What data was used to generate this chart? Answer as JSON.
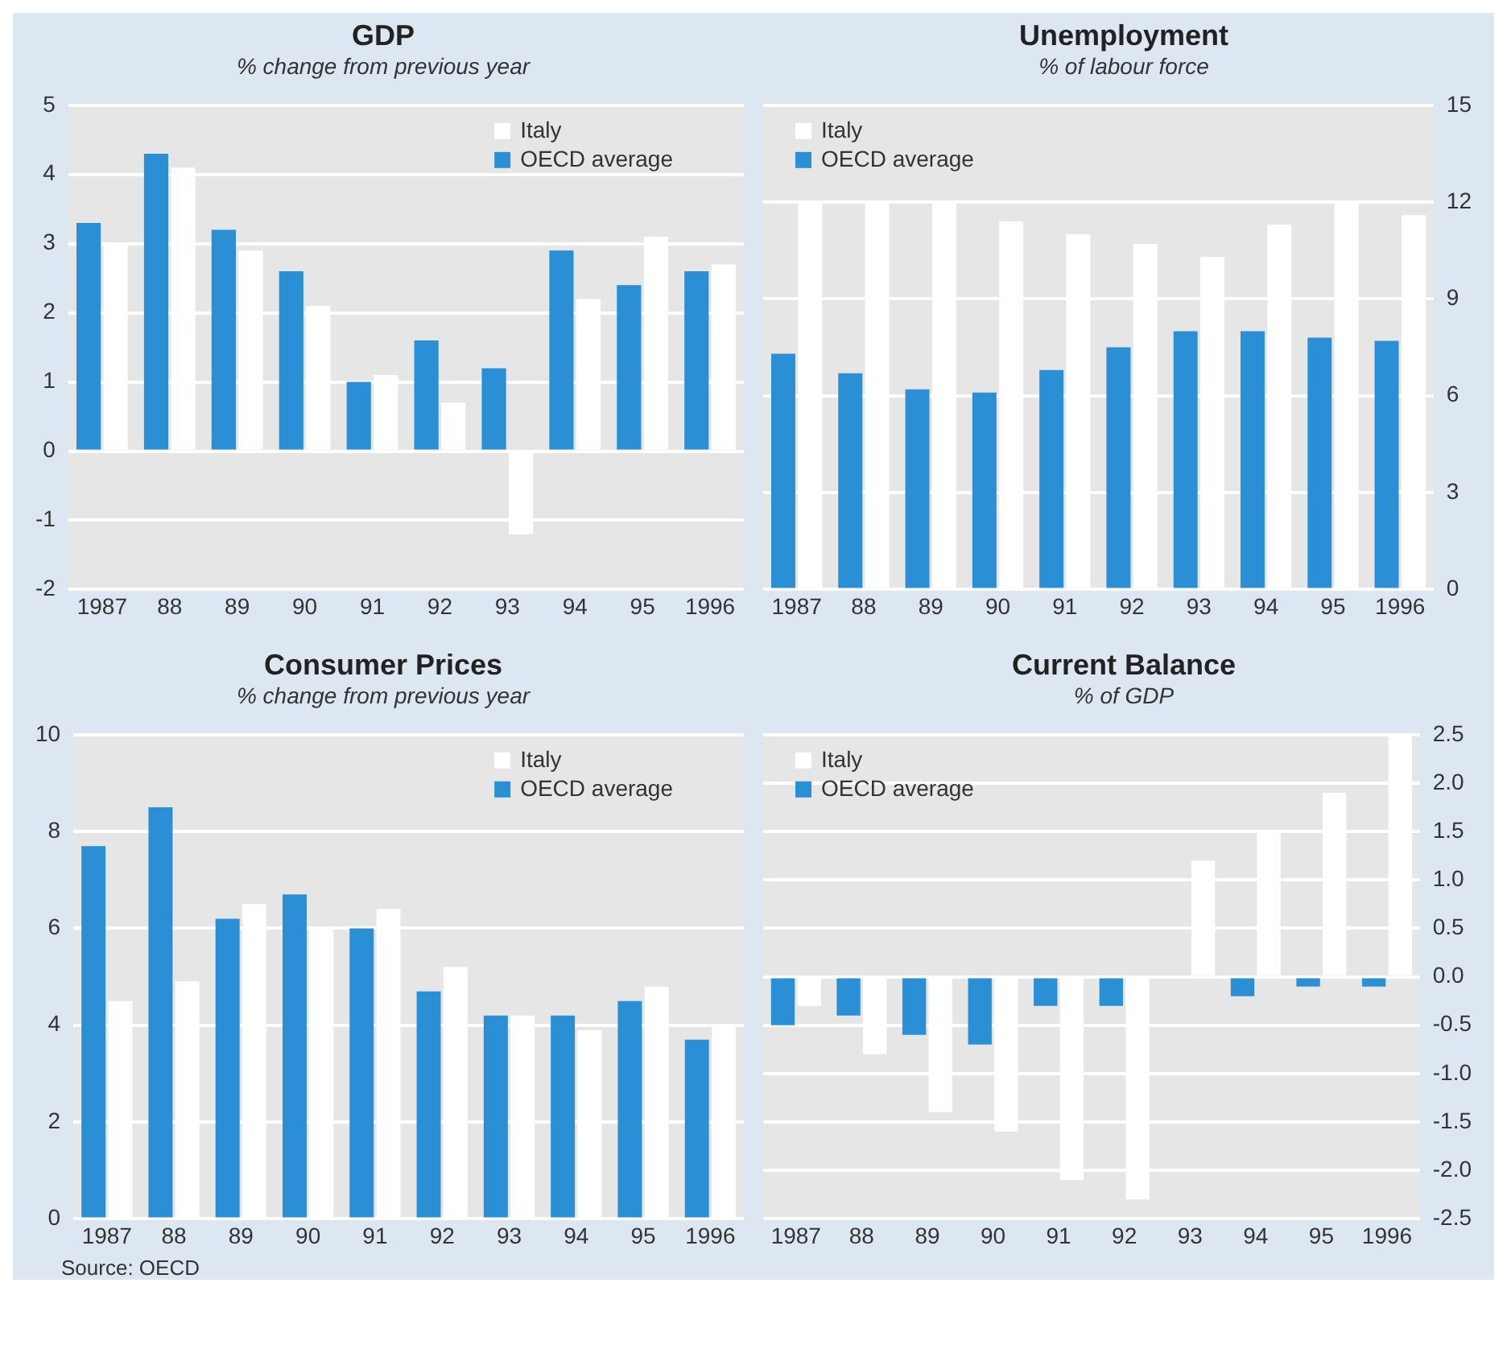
{
  "chart_data": [
    {
      "type": "bar",
      "title": "GDP",
      "subtitle": "% change from previous year",
      "categories": [
        "1987",
        "88",
        "89",
        "90",
        "91",
        "92",
        "93",
        "94",
        "95",
        "1996"
      ],
      "series": [
        {
          "name": "OECD average",
          "color": "#2b8fd6",
          "values": [
            3.3,
            4.3,
            3.2,
            2.6,
            1.0,
            1.6,
            1.2,
            2.9,
            2.4,
            2.6
          ]
        },
        {
          "name": "Italy",
          "color": "#ffffff",
          "values": [
            3.0,
            4.1,
            2.9,
            2.1,
            1.1,
            0.7,
            -1.2,
            2.2,
            3.1,
            2.7
          ]
        }
      ],
      "ylim": [
        -2,
        5
      ],
      "yticks": [
        -2,
        -1,
        0,
        1,
        2,
        3,
        4,
        5
      ],
      "grid": "y",
      "legend": "top right"
    },
    {
      "type": "bar",
      "title": "Unemployment",
      "subtitle": "% of labour force",
      "categories": [
        "1987",
        "88",
        "89",
        "90",
        "91",
        "92",
        "93",
        "94",
        "95",
        "1996"
      ],
      "series": [
        {
          "name": "OECD average",
          "color": "#2b8fd6",
          "values": [
            7.3,
            6.7,
            6.2,
            6.1,
            6.8,
            7.5,
            8.0,
            8.0,
            7.8,
            7.7
          ]
        },
        {
          "name": "Italy",
          "color": "#ffffff",
          "values": [
            12.0,
            12.0,
            12.0,
            11.4,
            11.0,
            10.7,
            10.3,
            11.3,
            12.0,
            11.6
          ]
        }
      ],
      "ylim": [
        0,
        15
      ],
      "yticks": [
        0,
        3,
        6,
        9,
        12,
        15
      ],
      "grid": "y",
      "legend": "top left"
    },
    {
      "type": "bar",
      "title": "Consumer Prices",
      "subtitle": "% change from previous year",
      "categories": [
        "1987",
        "88",
        "89",
        "90",
        "91",
        "92",
        "93",
        "94",
        "95",
        "1996"
      ],
      "series": [
        {
          "name": "OECD average",
          "color": "#2b8fd6",
          "values": [
            7.7,
            8.5,
            6.2,
            6.7,
            6.0,
            4.7,
            4.2,
            4.2,
            4.5,
            3.7
          ]
        },
        {
          "name": "Italy",
          "color": "#ffffff",
          "values": [
            4.5,
            4.9,
            6.5,
            6.0,
            6.4,
            5.2,
            4.2,
            3.9,
            4.8,
            4.0
          ]
        }
      ],
      "ylim": [
        0,
        10
      ],
      "yticks": [
        0,
        2,
        4,
        6,
        8,
        10
      ],
      "grid": "y",
      "legend": "top right",
      "annotations": [
        "Source: OECD"
      ]
    },
    {
      "type": "bar",
      "title": "Current Balance",
      "subtitle": "% of GDP",
      "categories": [
        "1987",
        "88",
        "89",
        "90",
        "91",
        "92",
        "93",
        "94",
        "95",
        "1996"
      ],
      "series": [
        {
          "name": "OECD average",
          "color": "#2b8fd6",
          "values": [
            -0.5,
            -0.4,
            -0.6,
            -0.7,
            -0.3,
            -0.3,
            0,
            -0.2,
            -0.1,
            -0.1
          ]
        },
        {
          "name": "Italy",
          "color": "#ffffff",
          "values": [
            -0.3,
            -0.8,
            -1.4,
            -1.6,
            -2.1,
            -2.3,
            1.2,
            1.5,
            1.9,
            2.5
          ]
        }
      ],
      "ylim": [
        -2.5,
        2.5
      ],
      "yticks": [
        {
          "value": -2.5,
          "label": "-2.5"
        },
        {
          "value": -2,
          "label": "-2.0"
        },
        {
          "value": -1.5,
          "label": "-1.5"
        },
        {
          "value": -1,
          "label": "-1.0"
        },
        {
          "value": -0.5,
          "label": "-0.5"
        },
        {
          "value": 0,
          "label": "0.0"
        },
        {
          "value": 0.5,
          "label": "0.5"
        },
        {
          "value": 1,
          "label": "1.0"
        },
        {
          "value": 1.5,
          "label": "1.5"
        },
        {
          "value": 2,
          "label": "2.0"
        },
        {
          "value": 2.5,
          "label": "2.5"
        }
      ],
      "grid": "y",
      "legend": "top left"
    }
  ]
}
